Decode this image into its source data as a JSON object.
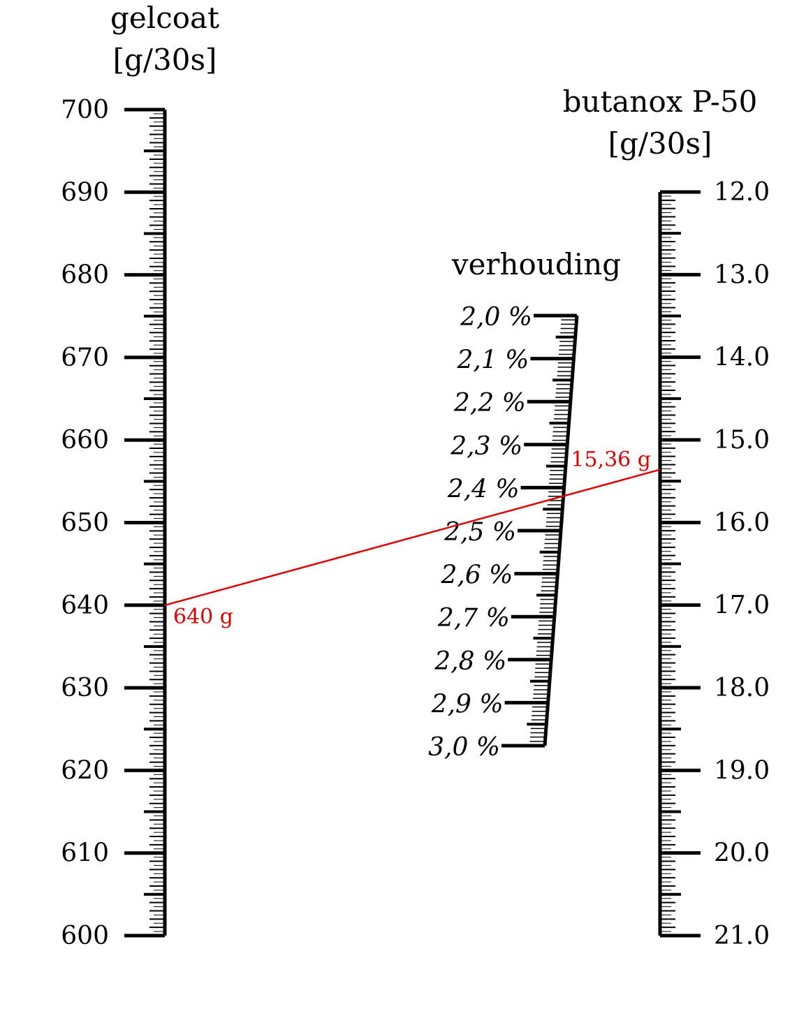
{
  "left_axis": {
    "title_line1": "gelcoat",
    "title_line2": "[g/30s]",
    "labels": [
      "700",
      "690",
      "680",
      "670",
      "660",
      "650",
      "640",
      "630",
      "620",
      "610",
      "600"
    ],
    "min": 600,
    "max": 700
  },
  "right_axis": {
    "title_line1": "butanox P-50",
    "title_line2": "[g/30s]",
    "labels": [
      "12.0",
      "13.0",
      "14.0",
      "15.0",
      "16.0",
      "17.0",
      "18.0",
      "19.0",
      "20.0",
      "21.0"
    ],
    "min": 12.0,
    "max": 21.0
  },
  "middle_axis": {
    "title": "verhouding",
    "labels": [
      "2,0 %",
      "2,1 %",
      "2,2 %",
      "2,3 %",
      "2,4 %",
      "2,5 %",
      "2,6 %",
      "2,7 %",
      "2,8 %",
      "2,9 %",
      "3,0 %"
    ],
    "min": 2.0,
    "max": 3.0
  },
  "isopleth": {
    "left_label": "640 g",
    "right_label": "15,36 g",
    "gelcoat_value": 640,
    "butanox_value": 15.36,
    "ratio_value": 2.4,
    "color": "#e00000"
  },
  "colors": {
    "ink": "#000000",
    "annotation": "#e00000"
  }
}
